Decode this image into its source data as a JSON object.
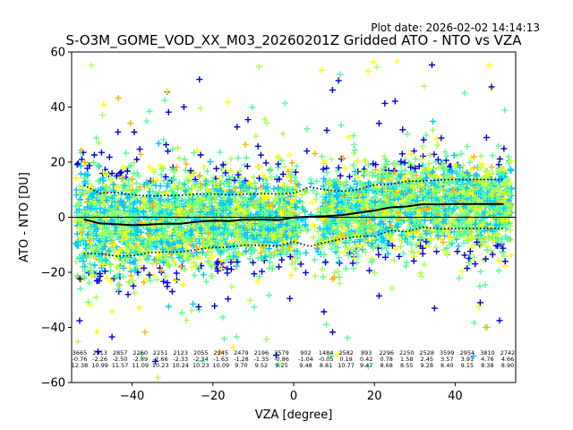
{
  "chart_data": {
    "type": "scatter",
    "plot_date": "Plot date: 2026-02-02 14:14:13",
    "title": "S-O3M_GOME_VOD_XX_M03_20260201Z Gridded ATO - NTO vs VZA",
    "xlabel": "VZA [degree]",
    "ylabel": "ATO - NTO [DU]",
    "xlim": [
      -55,
      55
    ],
    "ylim": [
      -60,
      60
    ],
    "xticks": [
      -40,
      -20,
      0,
      20,
      40
    ],
    "xtick_labels": [
      "−40",
      "−20",
      "0",
      "20",
      "40"
    ],
    "yticks": [
      -60,
      -40,
      -20,
      0,
      20,
      40,
      60
    ],
    "ytick_labels": [
      "−60",
      "−40",
      "−20",
      "0",
      "20",
      "40",
      "60"
    ],
    "marker": "+",
    "point_colors": [
      "#0000dd",
      "#00c8ff",
      "#55ff99",
      "#aaff55",
      "#ffff00",
      "#ffb300"
    ],
    "bins_x": [
      -52,
      -48,
      -44,
      -40,
      -36,
      -32,
      -28,
      -24,
      -20,
      -16,
      -12,
      -8,
      -4,
      0,
      4,
      8,
      12,
      16,
      20,
      24,
      28,
      32,
      36,
      40,
      44,
      48,
      52
    ],
    "mean": [
      -0.76,
      -2.26,
      -2.5,
      -2.89,
      -2.66,
      -2.33,
      -2.34,
      -1.63,
      -1.28,
      -1.35,
      -0.86,
      -0.8,
      -1.04,
      -0.05,
      0.19,
      0.42,
      0.78,
      1.58,
      2.45,
      3.57,
      3.91,
      4.76,
      4.66,
      4.8,
      4.8,
      4.8,
      4.8
    ],
    "std": [
      12.38,
      10.99,
      11.57,
      11.09,
      10.23,
      10.24,
      10.23,
      10.09,
      9.7,
      9.52,
      9.25,
      9.4,
      9.48,
      8.81,
      10.77,
      9.47,
      8.68,
      8.55,
      9.28,
      8.4,
      9.15,
      8.38,
      8.9,
      8.9,
      8.9,
      8.9,
      8.9
    ],
    "stats_columns": [
      {
        "x": -53,
        "count": "3665",
        "mean": "-0.76",
        "std": "12.38"
      },
      {
        "x": -48,
        "count": "2913",
        "mean": "-2.26",
        "std": "10.99"
      },
      {
        "x": -43,
        "count": "2857",
        "mean": "-2.50",
        "std": "11.57"
      },
      {
        "x": -38,
        "count": "2260",
        "mean": "-2.89",
        "std": "11.09"
      },
      {
        "x": -33,
        "count": "2251",
        "mean": "-2.66",
        "std": "10.23"
      },
      {
        "x": -28,
        "count": "2123",
        "mean": "-2.33",
        "std": "10.24"
      },
      {
        "x": -23,
        "count": "2055",
        "mean": "-2.34",
        "std": "10.23"
      },
      {
        "x": -18,
        "count": "2245",
        "mean": "-1.63",
        "std": "10.09"
      },
      {
        "x": -13,
        "count": "2479",
        "mean": "-1.28",
        "std": "9.70"
      },
      {
        "x": -8,
        "count": "2196",
        "mean": "-1.35",
        "std": "9.52"
      },
      {
        "x": -3,
        "count": "3579",
        "mean": "-0.86",
        "std": "9.25"
      },
      {
        "x": 3,
        "count": "902",
        "mean": "-1.04",
        "std": "9.48"
      },
      {
        "x": 8,
        "count": "1484",
        "mean": "-0.05",
        "std": "8.81"
      },
      {
        "x": 13,
        "count": "2582",
        "mean": "0.19",
        "std": "10.77"
      },
      {
        "x": 18,
        "count": "893",
        "mean": "0.42",
        "std": "9.47"
      },
      {
        "x": 23,
        "count": "2296",
        "mean": "0.78",
        "std": "8.68"
      },
      {
        "x": 28,
        "count": "2250",
        "mean": "1.58",
        "std": "8.55"
      },
      {
        "x": 33,
        "count": "2528",
        "mean": "2.45",
        "std": "9.28"
      },
      {
        "x": 38,
        "count": "3599",
        "mean": "3.57",
        "std": "8.40"
      },
      {
        "x": 43,
        "count": "2954",
        "mean": "3.91",
        "std": "9.15"
      },
      {
        "x": 48,
        "count": "3810",
        "mean": "4.76",
        "std": "8.38"
      },
      {
        "x": 53,
        "count": "2742",
        "mean": "4.66",
        "std": "8.90"
      }
    ]
  }
}
